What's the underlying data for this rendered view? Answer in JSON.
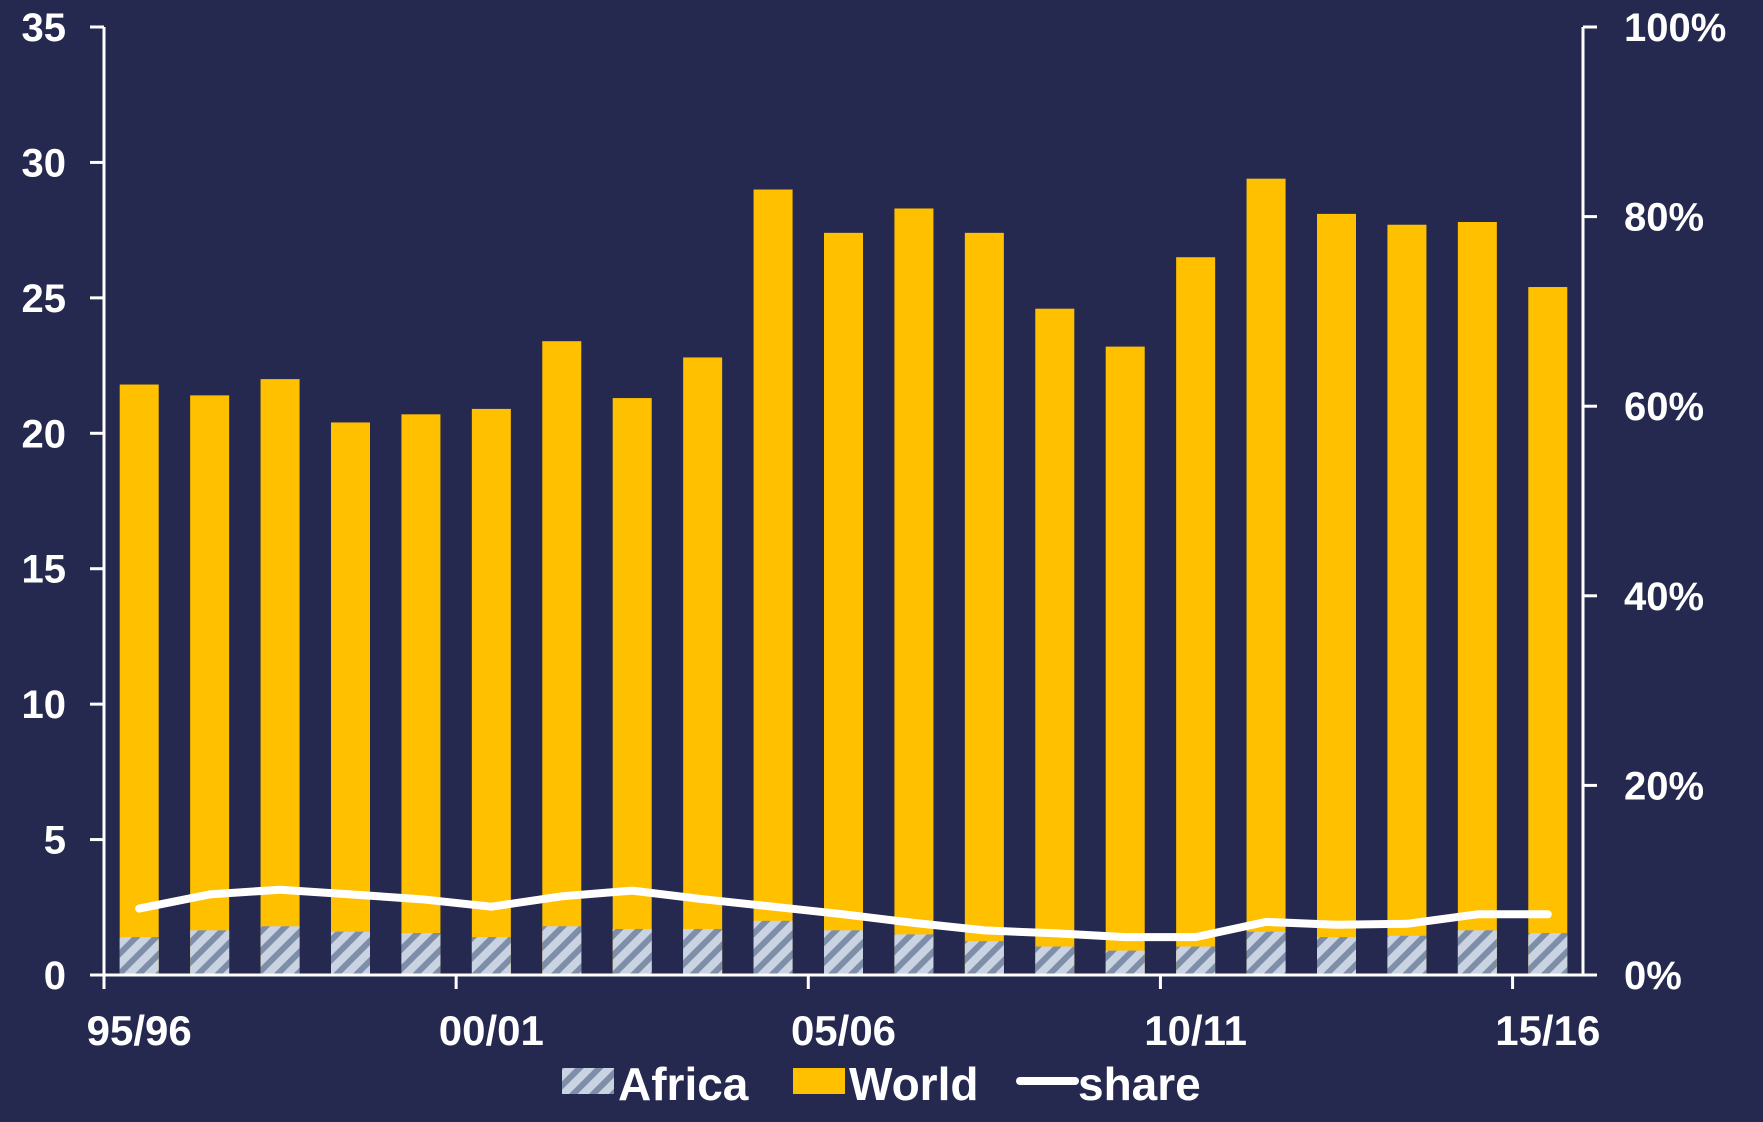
{
  "colors": {
    "background": "#26294f",
    "world": "#ffc000",
    "africa_base": "#c9d3e2",
    "africa_stripe": "#7f8ea8",
    "share": "#ffffff",
    "axis": "#ffffff"
  },
  "chart_data": {
    "type": "bar",
    "stacked": false,
    "categories": [
      "95/96",
      "96/97",
      "97/98",
      "98/99",
      "99/00",
      "00/01",
      "01/02",
      "02/03",
      "03/04",
      "04/05",
      "05/06",
      "06/07",
      "07/08",
      "08/09",
      "09/10",
      "10/11",
      "11/12",
      "12/13",
      "13/14",
      "14/15",
      "15/16"
    ],
    "x_tick_labels": [
      "95/96",
      "00/01",
      "05/06",
      "10/11",
      "15/16"
    ],
    "series": [
      {
        "name": "Africa",
        "axis": "left",
        "kind": "bar",
        "pattern": "hatched",
        "values": [
          1.4,
          1.65,
          1.8,
          1.6,
          1.55,
          1.4,
          1.8,
          1.7,
          1.7,
          2.0,
          1.65,
          1.5,
          1.25,
          1.05,
          0.9,
          1.05,
          1.6,
          1.4,
          1.45,
          1.65,
          1.55
        ]
      },
      {
        "name": "World",
        "axis": "left",
        "kind": "bar",
        "values": [
          21.8,
          21.4,
          22.0,
          20.4,
          20.7,
          20.9,
          23.4,
          21.3,
          22.8,
          29.0,
          27.4,
          28.3,
          27.4,
          24.6,
          23.2,
          26.5,
          29.4,
          28.1,
          27.7,
          27.8,
          25.4
        ]
      },
      {
        "name": "share",
        "axis": "right",
        "kind": "line",
        "unit": "%",
        "values": [
          7.0,
          8.5,
          9.0,
          8.5,
          8.0,
          7.2,
          8.3,
          8.9,
          8.0,
          7.2,
          6.4,
          5.5,
          4.7,
          4.4,
          4.0,
          4.0,
          5.6,
          5.3,
          5.4,
          6.4,
          6.4
        ]
      }
    ],
    "y_left": {
      "min": 0,
      "max": 35,
      "ticks": [
        "0",
        "5",
        "10",
        "15",
        "20",
        "25",
        "30",
        "35"
      ]
    },
    "y_right": {
      "min": 0,
      "max": 100,
      "ticks": [
        "0%",
        "20%",
        "40%",
        "60%",
        "80%",
        "100%"
      ]
    },
    "legend": {
      "position": "bottom",
      "items": [
        "Africa",
        "World",
        "share"
      ]
    },
    "title": "",
    "xlabel": "",
    "ylabel": ""
  }
}
